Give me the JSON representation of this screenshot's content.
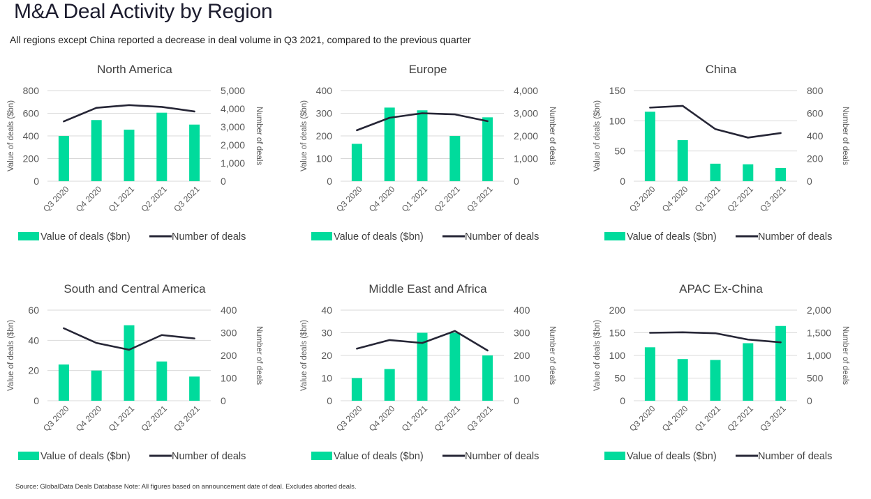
{
  "header": {
    "title": "M&A Deal Activity by Region",
    "subtitle": "All regions except China reported a decrease in deal volume in Q3 2021, compared to the previous quarter"
  },
  "footer": {
    "source": "Source: GlobalData Deals Database Note: All figures based on announcement date of deal. Excludes aborted deals."
  },
  "colors": {
    "bar": "#00DB9C",
    "line": "#262636",
    "grid": "#D9D9D9",
    "tick_text": "#595959"
  },
  "chart_data": [
    {
      "type": "bar+line",
      "title": "North America",
      "categories": [
        "Q3 2020",
        "Q4 2020",
        "Q1 2021",
        "Q2 2021",
        "Q3 2021"
      ],
      "series": [
        {
          "name": "Value of deals ($bn)",
          "type": "bar",
          "axis": "left",
          "values": [
            400,
            540,
            455,
            605,
            500
          ]
        },
        {
          "name": "Number of deals",
          "type": "line",
          "axis": "right",
          "values": [
            3300,
            4050,
            4200,
            4100,
            3850
          ]
        }
      ],
      "ylabel": "Value of deals ($bn)",
      "y2label": "Number of deals",
      "ylim": [
        0,
        800
      ],
      "yticks": [
        "0",
        "200",
        "400",
        "600",
        "800"
      ],
      "y2lim": [
        0,
        5000
      ],
      "y2ticks": [
        "0",
        "1,000",
        "2,000",
        "3,000",
        "4,000",
        "5,000"
      ],
      "grid": true,
      "legend": "bottom"
    },
    {
      "type": "bar+line",
      "title": "Europe",
      "categories": [
        "Q3 2020",
        "Q4 2020",
        "Q1 2021",
        "Q2 2021",
        "Q3 2021"
      ],
      "series": [
        {
          "name": "Value of deals ($bn)",
          "type": "bar",
          "axis": "left",
          "values": [
            165,
            325,
            313,
            200,
            282
          ]
        },
        {
          "name": "Number of deals",
          "type": "line",
          "axis": "right",
          "values": [
            2250,
            2800,
            3000,
            2950,
            2650
          ]
        }
      ],
      "ylabel": "Value of deals ($bn)",
      "y2label": "Number of deals",
      "ylim": [
        0,
        400
      ],
      "yticks": [
        "0",
        "100",
        "200",
        "300",
        "400"
      ],
      "y2lim": [
        0,
        4000
      ],
      "y2ticks": [
        "0",
        "1,000",
        "2,000",
        "3,000",
        "4,000"
      ],
      "grid": true,
      "legend": "bottom"
    },
    {
      "type": "bar+line",
      "title": "China",
      "categories": [
        "Q3 2020",
        "Q4 2020",
        "Q1 2021",
        "Q2 2021",
        "Q3 2021"
      ],
      "series": [
        {
          "name": "Value of deals ($bn)",
          "type": "bar",
          "axis": "left",
          "values": [
            115,
            68,
            29,
            28,
            22
          ]
        },
        {
          "name": "Number of deals",
          "type": "line",
          "axis": "right",
          "values": [
            650,
            665,
            460,
            385,
            425
          ]
        }
      ],
      "ylabel": "Value of deals ($bn)",
      "y2label": "Number of deals",
      "ylim": [
        0,
        150
      ],
      "yticks": [
        "0",
        "50",
        "100",
        "150"
      ],
      "y2lim": [
        0,
        800
      ],
      "y2ticks": [
        "0",
        "200",
        "400",
        "600",
        "800"
      ],
      "grid": true,
      "legend": "bottom"
    },
    {
      "type": "bar+line",
      "title": "South and Central America",
      "categories": [
        "Q3 2020",
        "Q4 2020",
        "Q1 2021",
        "Q2 2021",
        "Q3 2021"
      ],
      "series": [
        {
          "name": "Value of deals ($bn)",
          "type": "bar",
          "axis": "left",
          "values": [
            24,
            20,
            50,
            26,
            16
          ]
        },
        {
          "name": "Number of deals",
          "type": "line",
          "axis": "right",
          "values": [
            320,
            255,
            225,
            290,
            275
          ]
        }
      ],
      "ylabel": "Value of deals ($bn)",
      "y2label": "Number of deals",
      "ylim": [
        0,
        60
      ],
      "yticks": [
        "0",
        "20",
        "40",
        "60"
      ],
      "y2lim": [
        0,
        400
      ],
      "y2ticks": [
        "0",
        "100",
        "200",
        "300",
        "400"
      ],
      "grid": true,
      "legend": "bottom"
    },
    {
      "type": "bar+line",
      "title": "Middle East and Africa",
      "categories": [
        "Q3 2020",
        "Q4 2020",
        "Q1 2021",
        "Q2 2021",
        "Q3 2021"
      ],
      "series": [
        {
          "name": "Value of deals ($bn)",
          "type": "bar",
          "axis": "left",
          "values": [
            10,
            14,
            30,
            30,
            20
          ]
        },
        {
          "name": "Number of deals",
          "type": "line",
          "axis": "right",
          "values": [
            230,
            268,
            255,
            308,
            222
          ]
        }
      ],
      "ylabel": "Value of deals ($bn)",
      "y2label": "Number of deals",
      "ylim": [
        0,
        40
      ],
      "yticks": [
        "0",
        "10",
        "20",
        "30",
        "40"
      ],
      "y2lim": [
        0,
        400
      ],
      "y2ticks": [
        "0",
        "100",
        "200",
        "300",
        "400"
      ],
      "grid": true,
      "legend": "bottom"
    },
    {
      "type": "bar+line",
      "title": "APAC Ex-China",
      "categories": [
        "Q3 2020",
        "Q4 2020",
        "Q1 2021",
        "Q2 2021",
        "Q3 2021"
      ],
      "series": [
        {
          "name": "Value of deals ($bn)",
          "type": "bar",
          "axis": "left",
          "values": [
            118,
            92,
            90,
            127,
            165
          ]
        },
        {
          "name": "Number of deals",
          "type": "line",
          "axis": "right",
          "values": [
            1500,
            1510,
            1490,
            1350,
            1290
          ]
        }
      ],
      "ylabel": "Value of deals ($bn)",
      "y2label": "Number of deals",
      "ylim": [
        0,
        200
      ],
      "yticks": [
        "0",
        "50",
        "100",
        "150",
        "200"
      ],
      "y2lim": [
        0,
        2000
      ],
      "y2ticks": [
        "0",
        "500",
        "1,000",
        "1,500",
        "2,000"
      ],
      "grid": true,
      "legend": "bottom"
    }
  ]
}
